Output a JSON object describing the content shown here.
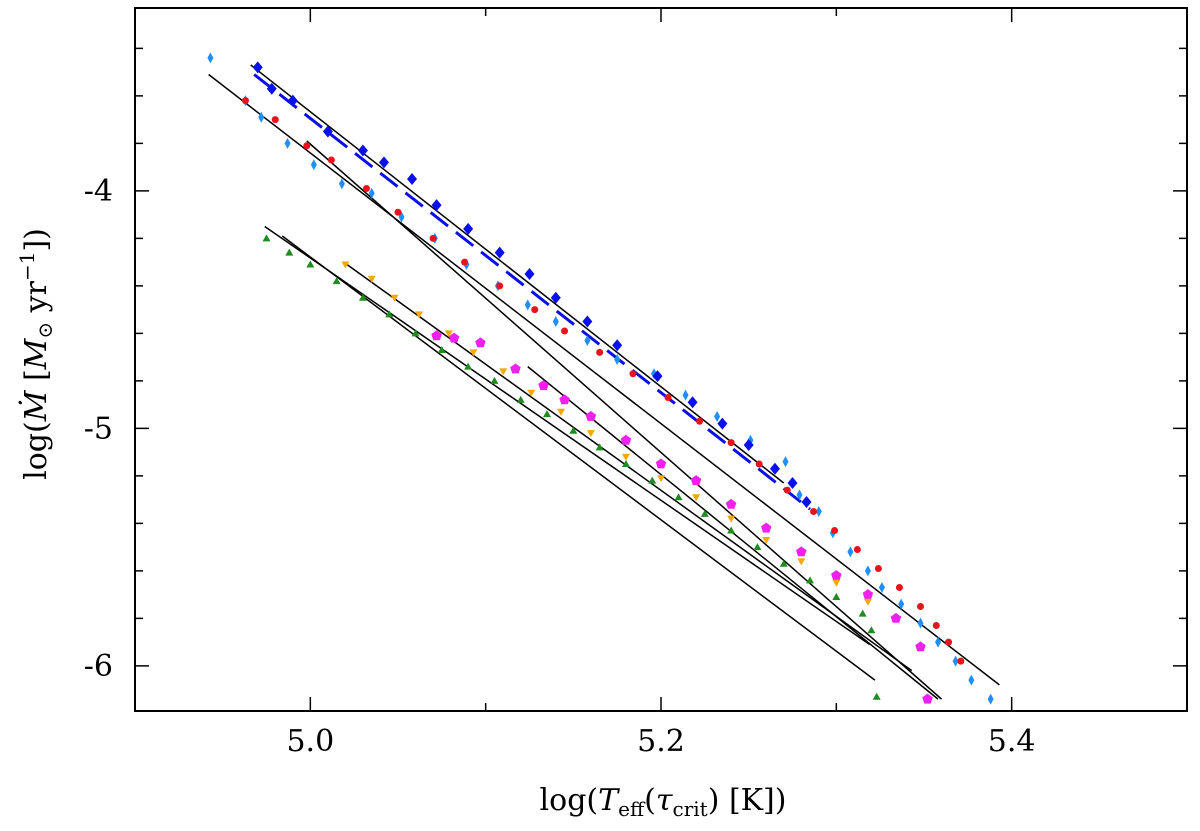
{
  "chart_data": {
    "type": "scatter",
    "title": "",
    "xlabel": "log(T_eff(τ_crit) [K])",
    "ylabel": "log(Ṁ [M_⊙ yr⁻¹])",
    "xlim": [
      4.9,
      5.5
    ],
    "ylim": [
      -6.19,
      -3.23
    ],
    "x_ticks": [
      5.0,
      5.2,
      5.4
    ],
    "x_tick_labels": [
      "5.0",
      "5.2",
      "5.4"
    ],
    "y_ticks": [
      -6,
      -5,
      -4
    ],
    "y_tick_labels": [
      "-6",
      "-5",
      "-4"
    ],
    "grid": false,
    "series": [
      {
        "color": "#1f8fff",
        "marker": "diamond",
        "points": [
          [
            4.943,
            -3.44
          ],
          [
            4.963,
            -3.62
          ],
          [
            4.972,
            -3.69
          ],
          [
            4.987,
            -3.8
          ],
          [
            5.002,
            -3.89
          ],
          [
            5.018,
            -3.97
          ],
          [
            5.035,
            -4.01
          ],
          [
            5.052,
            -4.11
          ],
          [
            5.071,
            -4.2
          ],
          [
            5.089,
            -4.31
          ],
          [
            5.107,
            -4.4
          ],
          [
            5.124,
            -4.48
          ],
          [
            5.14,
            -4.55
          ],
          [
            5.158,
            -4.63
          ],
          [
            5.175,
            -4.71
          ],
          [
            5.196,
            -4.77
          ],
          [
            5.214,
            -4.86
          ],
          [
            5.232,
            -4.95
          ],
          [
            5.251,
            -5.05
          ],
          [
            5.271,
            -5.14
          ],
          [
            5.279,
            -5.28
          ],
          [
            5.29,
            -5.35
          ],
          [
            5.298,
            -5.44
          ],
          [
            5.308,
            -5.52
          ],
          [
            5.318,
            -5.6
          ],
          [
            5.326,
            -5.67
          ],
          [
            5.337,
            -5.74
          ],
          [
            5.348,
            -5.82
          ],
          [
            5.358,
            -5.9
          ],
          [
            5.368,
            -5.98
          ],
          [
            5.377,
            -6.06
          ],
          [
            5.388,
            -6.14
          ]
        ]
      },
      {
        "color": "#e8141c",
        "marker": "circle",
        "points": [
          [
            4.963,
            -3.62
          ],
          [
            4.98,
            -3.7
          ],
          [
            4.998,
            -3.81
          ],
          [
            5.012,
            -3.87
          ],
          [
            5.032,
            -3.99
          ],
          [
            5.05,
            -4.09
          ],
          [
            5.07,
            -4.2
          ],
          [
            5.088,
            -4.3
          ],
          [
            5.108,
            -4.4
          ],
          [
            5.128,
            -4.5
          ],
          [
            5.145,
            -4.59
          ],
          [
            5.165,
            -4.68
          ],
          [
            5.184,
            -4.77
          ],
          [
            5.204,
            -4.87
          ],
          [
            5.222,
            -4.97
          ],
          [
            5.24,
            -5.06
          ],
          [
            5.256,
            -5.15
          ],
          [
            5.272,
            -5.26
          ],
          [
            5.287,
            -5.35
          ],
          [
            5.299,
            -5.43
          ],
          [
            5.312,
            -5.51
          ],
          [
            5.324,
            -5.59
          ],
          [
            5.336,
            -5.67
          ],
          [
            5.348,
            -5.75
          ],
          [
            5.357,
            -5.83
          ],
          [
            5.364,
            -5.9
          ],
          [
            5.371,
            -5.98
          ]
        ]
      },
      {
        "color": "#0a10ea",
        "marker": "diamond-large",
        "points": [
          [
            4.97,
            -3.48
          ],
          [
            4.978,
            -3.57
          ],
          [
            4.99,
            -3.62
          ],
          [
            5.01,
            -3.75
          ],
          [
            5.03,
            -3.83
          ],
          [
            5.042,
            -3.88
          ],
          [
            5.058,
            -3.95
          ],
          [
            5.072,
            -4.06
          ],
          [
            5.09,
            -4.16
          ],
          [
            5.108,
            -4.26
          ],
          [
            5.125,
            -4.35
          ],
          [
            5.14,
            -4.45
          ],
          [
            5.158,
            -4.55
          ],
          [
            5.175,
            -4.65
          ],
          [
            5.198,
            -4.78
          ],
          [
            5.218,
            -4.89
          ],
          [
            5.235,
            -4.98
          ],
          [
            5.25,
            -5.07
          ],
          [
            5.265,
            -5.17
          ],
          [
            5.275,
            -5.23
          ],
          [
            5.283,
            -5.31
          ]
        ]
      },
      {
        "color": "#f020f0",
        "marker": "pentagon",
        "points": [
          [
            5.072,
            -4.61
          ],
          [
            5.082,
            -4.62
          ],
          [
            5.097,
            -4.64
          ],
          [
            5.117,
            -4.75
          ],
          [
            5.133,
            -4.82
          ],
          [
            5.145,
            -4.88
          ],
          [
            5.16,
            -4.95
          ],
          [
            5.18,
            -5.05
          ],
          [
            5.2,
            -5.15
          ],
          [
            5.22,
            -5.22
          ],
          [
            5.24,
            -5.32
          ],
          [
            5.26,
            -5.42
          ],
          [
            5.28,
            -5.52
          ],
          [
            5.3,
            -5.62
          ],
          [
            5.318,
            -5.7
          ],
          [
            5.334,
            -5.8
          ],
          [
            5.348,
            -5.92
          ],
          [
            5.352,
            -6.14
          ]
        ]
      },
      {
        "color": "#f5a80a",
        "marker": "triangle-down",
        "points": [
          [
            5.02,
            -4.31
          ],
          [
            5.035,
            -4.37
          ],
          [
            5.048,
            -4.45
          ],
          [
            5.062,
            -4.52
          ],
          [
            5.079,
            -4.6
          ],
          [
            5.093,
            -4.68
          ],
          [
            5.11,
            -4.76
          ],
          [
            5.126,
            -4.85
          ],
          [
            5.143,
            -4.93
          ],
          [
            5.16,
            -5.02
          ],
          [
            5.18,
            -5.12
          ],
          [
            5.2,
            -5.21
          ],
          [
            5.22,
            -5.29
          ],
          [
            5.24,
            -5.38
          ],
          [
            5.26,
            -5.47
          ],
          [
            5.28,
            -5.56
          ],
          [
            5.3,
            -5.65
          ],
          [
            5.318,
            -5.73
          ]
        ]
      },
      {
        "color": "#1e8c1e",
        "marker": "triangle-up",
        "points": [
          [
            4.975,
            -4.2
          ],
          [
            4.988,
            -4.26
          ],
          [
            5.0,
            -4.31
          ],
          [
            5.015,
            -4.38
          ],
          [
            5.03,
            -4.45
          ],
          [
            5.045,
            -4.52
          ],
          [
            5.06,
            -4.6
          ],
          [
            5.075,
            -4.67
          ],
          [
            5.09,
            -4.74
          ],
          [
            5.105,
            -4.8
          ],
          [
            5.12,
            -4.88
          ],
          [
            5.135,
            -4.94
          ],
          [
            5.15,
            -5.01
          ],
          [
            5.165,
            -5.08
          ],
          [
            5.18,
            -5.15
          ],
          [
            5.195,
            -5.22
          ],
          [
            5.21,
            -5.29
          ],
          [
            5.225,
            -5.36
          ],
          [
            5.24,
            -5.43
          ],
          [
            5.255,
            -5.5
          ],
          [
            5.27,
            -5.57
          ],
          [
            5.285,
            -5.64
          ],
          [
            5.3,
            -5.71
          ],
          [
            5.315,
            -5.78
          ],
          [
            5.32,
            -5.85
          ],
          [
            5.323,
            -6.13
          ]
        ]
      }
    ],
    "fit_lines": [
      {
        "color": "#000000",
        "x": [
          4.942,
          5.393
        ],
        "y": [
          -3.51,
          -6.08
        ]
      },
      {
        "color": "#000000",
        "x": [
          4.998,
          5.36
        ],
        "y": [
          -3.79,
          -6.14
        ]
      },
      {
        "color": "#000000",
        "x": [
          4.966,
          5.27
        ],
        "y": [
          -3.47,
          -5.23
        ]
      },
      {
        "color": "#000000",
        "x": [
          4.974,
          5.319
        ],
        "y": [
          -4.15,
          -5.91
        ]
      },
      {
        "color": "#000000",
        "x": [
          4.984,
          5.322
        ],
        "y": [
          -4.19,
          -6.06
        ]
      },
      {
        "color": "#000000",
        "x": [
          5.019,
          5.343
        ],
        "y": [
          -4.3,
          -6.02
        ]
      },
      {
        "color": "#000000",
        "x": [
          5.124,
          5.358
        ],
        "y": [
          -4.74,
          -6.14
        ]
      }
    ],
    "dashed_lines": [
      {
        "color": "#0a10ea",
        "x": [
          4.968,
          5.285
        ],
        "y": [
          -3.51,
          -5.34
        ]
      }
    ]
  }
}
